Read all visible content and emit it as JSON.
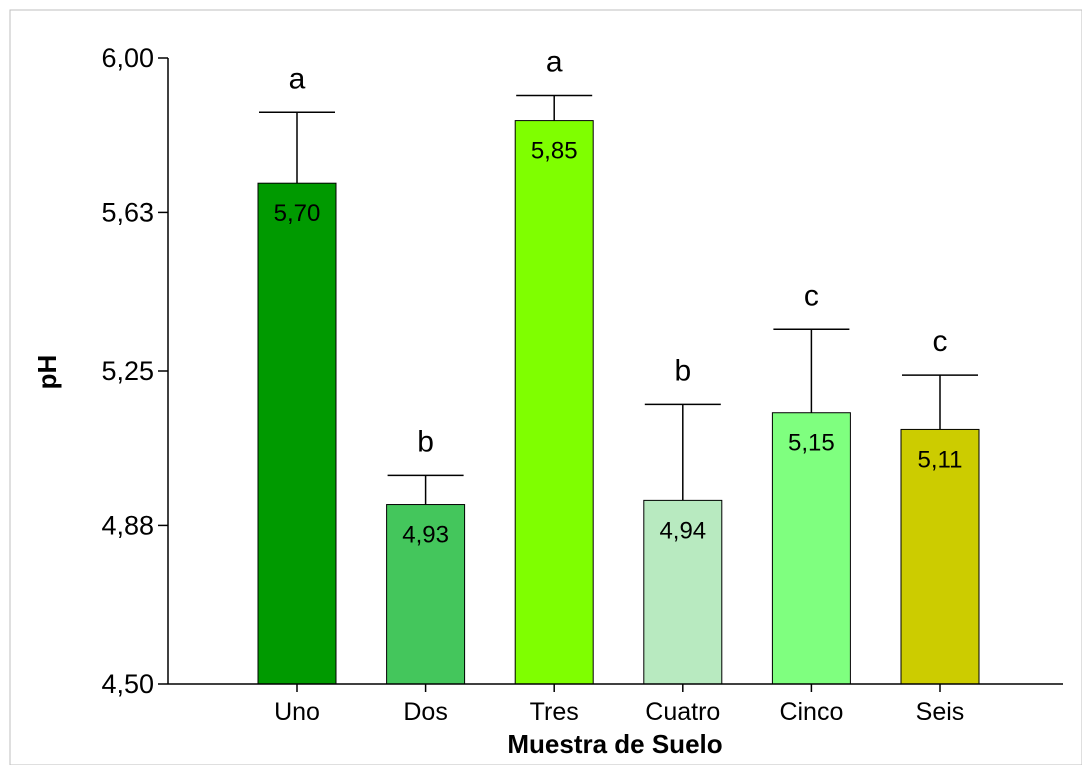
{
  "chart_data": {
    "type": "bar",
    "title": "",
    "xlabel": "Muestra de Suelo",
    "ylabel": "pH",
    "ylim": [
      4.5,
      6.0
    ],
    "y_ticks": [
      4.5,
      4.88,
      5.25,
      5.63,
      6.0
    ],
    "y_tick_labels": [
      "4,50",
      "4,88",
      "5,25",
      "5,63",
      "6,00"
    ],
    "grid": false,
    "legend": "none",
    "categories": [
      "Uno",
      "Dos",
      "Tres",
      "Cuatro",
      "Cinco",
      "Seis"
    ],
    "values": [
      5.7,
      4.93,
      5.85,
      4.94,
      5.15,
      5.11
    ],
    "value_labels": [
      "5,70",
      "4,93",
      "5,85",
      "4,94",
      "5,15",
      "5,11"
    ],
    "error_upper": [
      5.87,
      5.0,
      5.91,
      5.17,
      5.35,
      5.24
    ],
    "significance_letters": [
      "a",
      "b",
      "a",
      "b",
      "c",
      "c"
    ],
    "colors": [
      "#009A00",
      "#44C65C",
      "#7FFF00",
      "#B8EAC0",
      "#7FFF7F",
      "#CCCC00"
    ]
  }
}
